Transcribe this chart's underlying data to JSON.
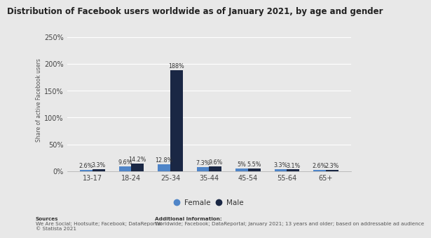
{
  "title": "Distribution of Facebook users worldwide as of January 2021, by age and gender",
  "categories": [
    "13-17",
    "18-24",
    "25-34",
    "35-44",
    "45-54",
    "55-64",
    "65+"
  ],
  "female_values": [
    2.6,
    9.6,
    12.8,
    7.3,
    5.0,
    3.3,
    2.6
  ],
  "male_values": [
    3.3,
    14.2,
    188.0,
    9.6,
    5.5,
    3.1,
    2.3
  ],
  "female_labels": [
    "2.6%",
    "9.6%",
    "12.8%",
    "7.3%",
    "5%",
    "3.3%",
    "2.6%"
  ],
  "male_labels": [
    "3.3%",
    "14.2%",
    "188%",
    "9.6%",
    "5.5%",
    "3.1%",
    "2.3%"
  ],
  "female_color": "#4f85c8",
  "male_color": "#1a2744",
  "background_color": "#e8e8e8",
  "plot_bg_color": "#e8e8e8",
  "ylabel": "Share of active Facebook users",
  "yticks": [
    0,
    50,
    100,
    150,
    200,
    250
  ],
  "ytick_labels": [
    "0%",
    "50%",
    "100%",
    "150%",
    "200%",
    "250%"
  ],
  "ylim": [
    0,
    265
  ],
  "bar_width": 0.32,
  "sources_label": "Sources",
  "sources_body": "We Are Social; Hootsuite; Facebook; DataReportal\n© Statista 2021",
  "additional_label": "Additional Information:",
  "additional_body": "Worldwide; Facebook; DataReportal; January 2021; 13 years and older; based on addressable ad audience",
  "title_fontsize": 8.5,
  "label_fontsize": 5.8,
  "axis_fontsize": 7,
  "legend_fontsize": 7.5,
  "footer_fontsize": 5.2
}
